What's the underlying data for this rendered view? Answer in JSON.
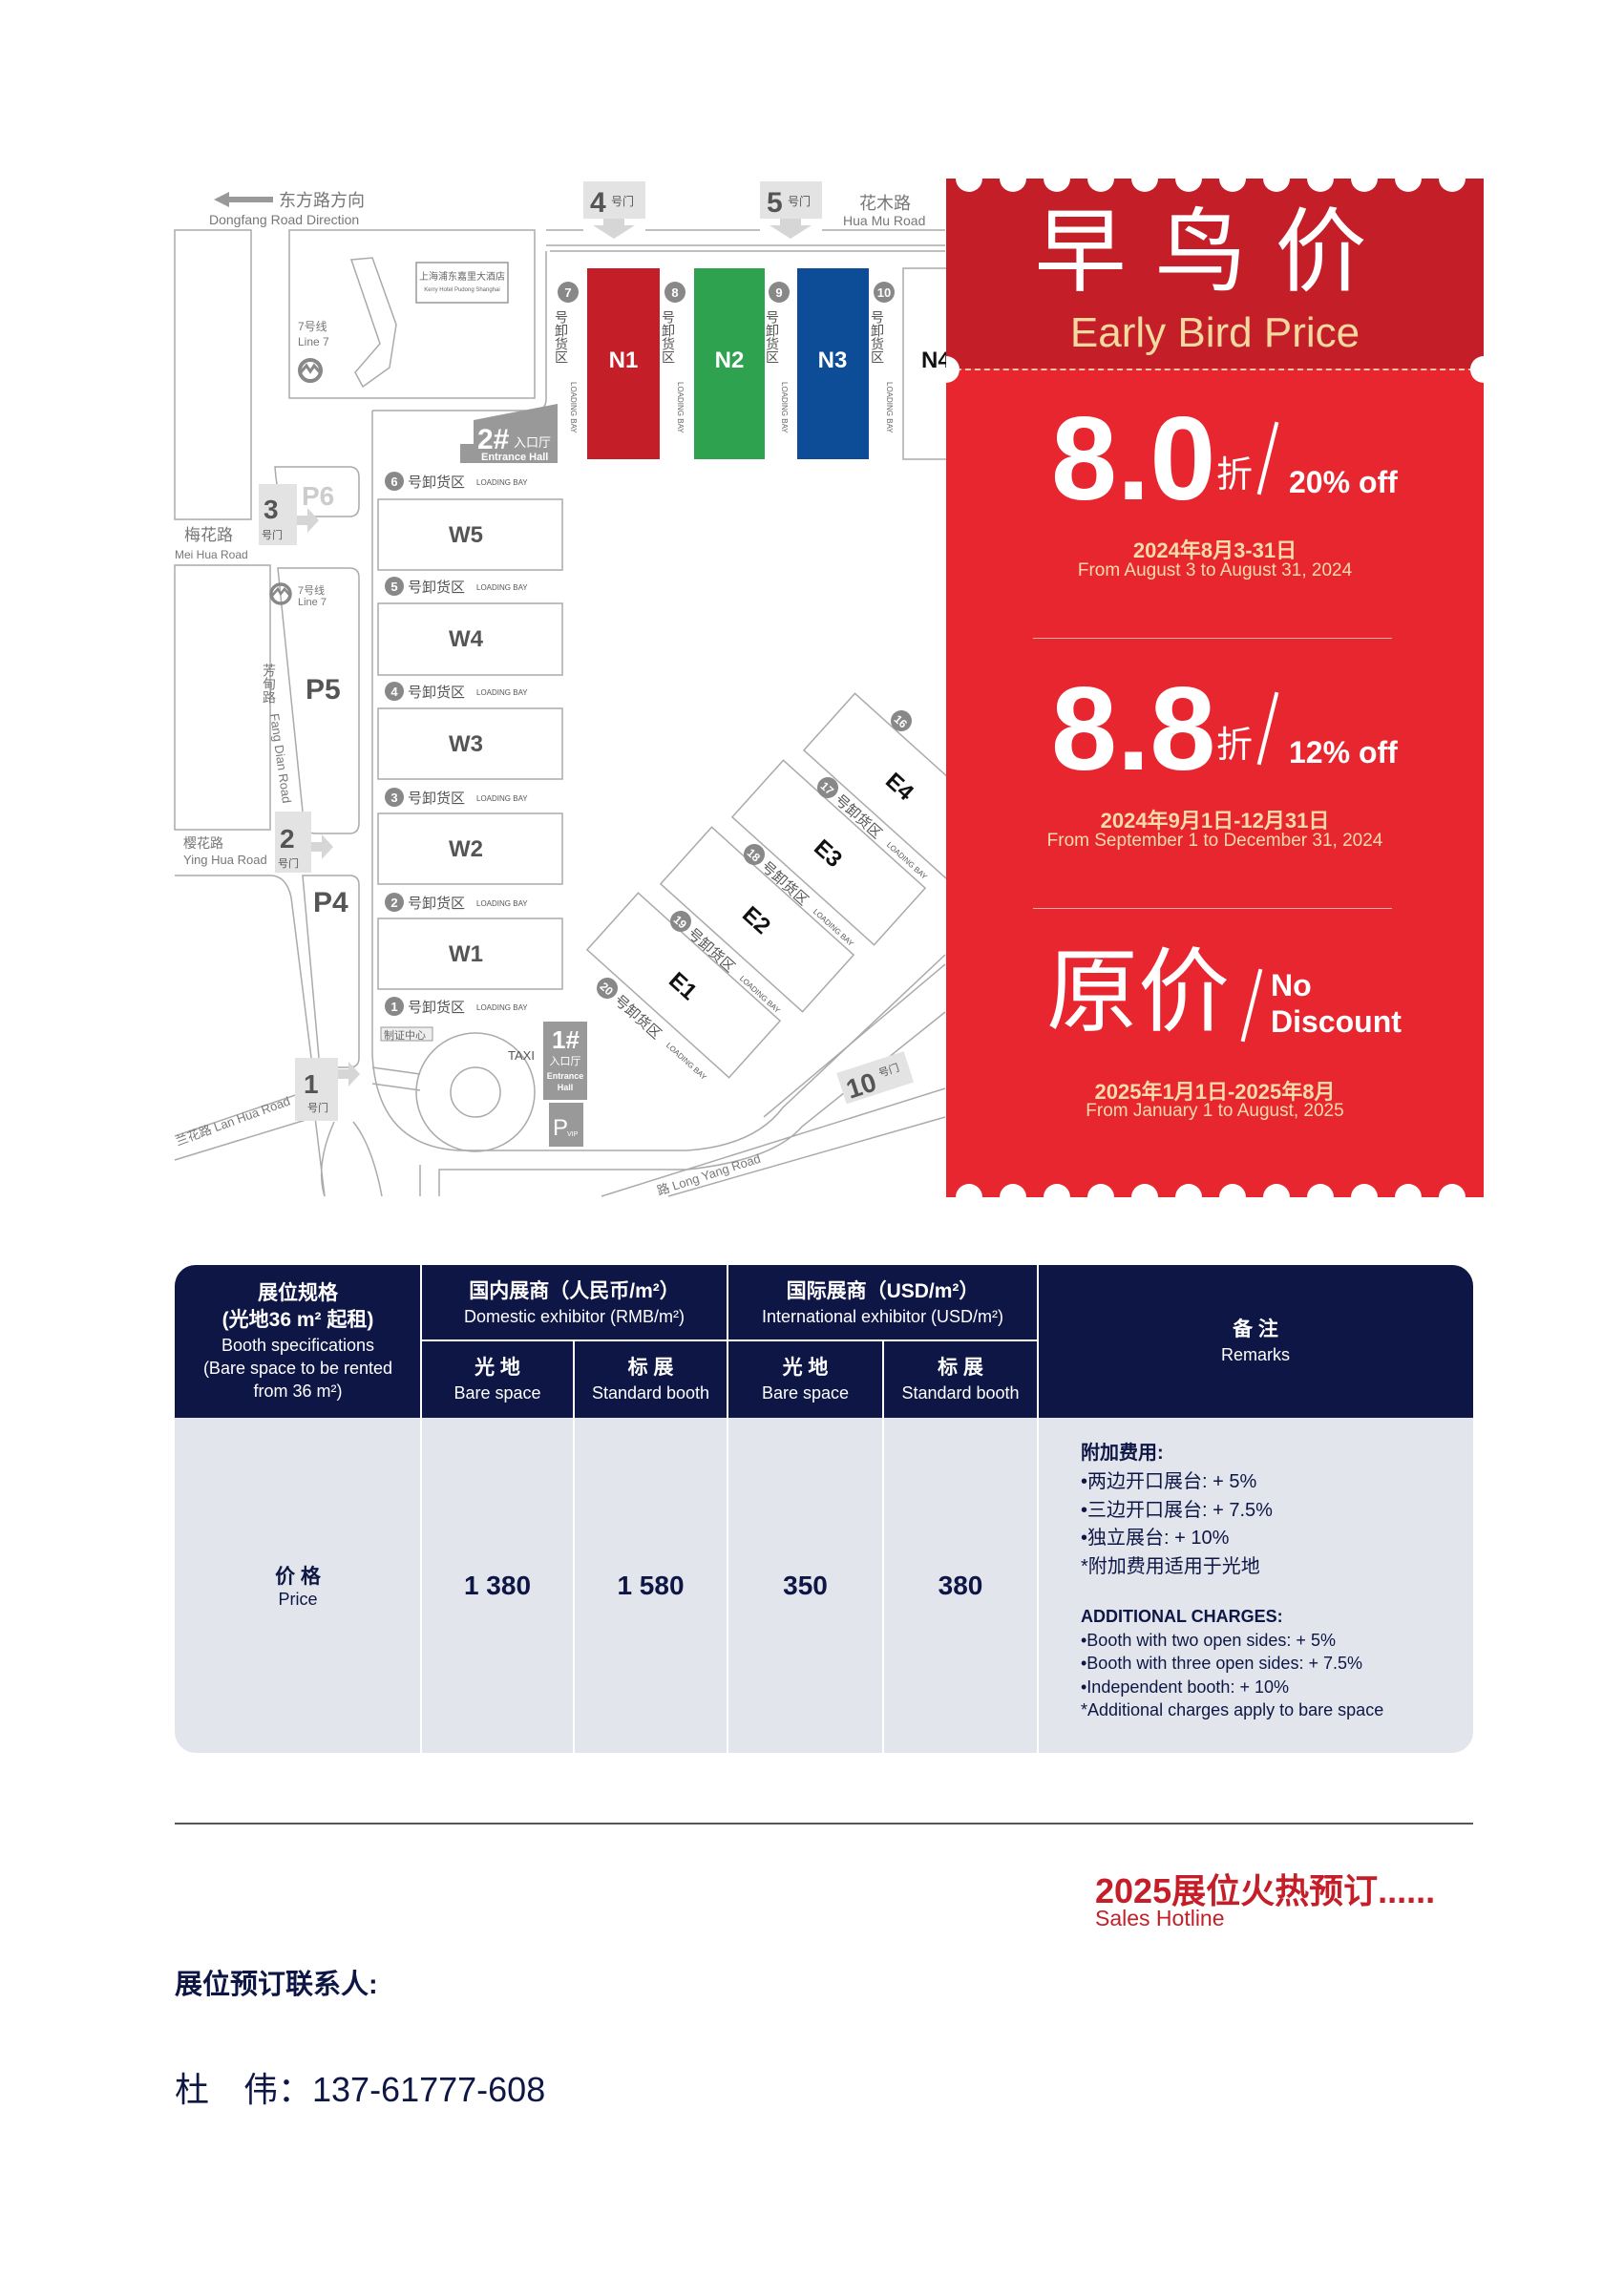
{
  "map": {
    "direction_cn": "东方路方向",
    "direction_en": "Dongfang Road Direction",
    "gates": [
      {
        "num": "4",
        "suffix": "号门"
      },
      {
        "num": "5",
        "suffix": "号门"
      },
      {
        "num": "3",
        "suffix": "号门"
      },
      {
        "num": "2",
        "suffix": "号门"
      },
      {
        "num": "1",
        "suffix": "号门"
      },
      {
        "num": "10",
        "suffix": "号门"
      }
    ],
    "roads": {
      "huamu_cn": "花木路",
      "huamu_en": "Hua Mu Road",
      "meihua_cn": "梅花路",
      "meihua_en": "Mei Hua Road",
      "yinghua_cn": "樱花路",
      "yinghua_en": "Ying Hua Road",
      "fangdian_cn": "芳甸路",
      "fangdian_en": "Fang Dian Road",
      "lanhua": "兰花路 Lan Hua Road",
      "longyang": "路 Long Yang Road"
    },
    "hotel_cn": "上海浦东嘉里大酒店",
    "hotel_en": "Kerry Hotel Pudong Shanghai",
    "metro_cn": "7号线",
    "metro_en": "Line 7",
    "entrance2": {
      "num": "2#",
      "cn": "入口厅",
      "en": "Entrance Hall"
    },
    "entrance1": {
      "num": "1#",
      "cn": "入口厅",
      "en1": "Entrance",
      "en2": "Hall"
    },
    "parking": [
      "P6",
      "P5",
      "P4"
    ],
    "vip_parking": {
      "p": "P",
      "sub": "VIP"
    },
    "badge_center": "制证中心",
    "taxi": "TAXI",
    "loading_cn": "号卸货区",
    "loading_en": "LOADING BAY",
    "loading_v_cn": "号卸货区",
    "north_halls": [
      {
        "name": "N1",
        "color": "#c41f29",
        "bay": "7"
      },
      {
        "name": "N2",
        "color": "#2fa24f",
        "bay": "8"
      },
      {
        "name": "N3",
        "color": "#0d4c96",
        "bay": "9"
      },
      {
        "name": "N4",
        "color": "#ffffff",
        "bay": "10"
      }
    ],
    "west_halls": [
      "W5",
      "W4",
      "W3",
      "W2",
      "W1"
    ],
    "west_bays": [
      "6",
      "5",
      "4",
      "3",
      "2",
      "1"
    ],
    "east_halls": [
      "E1",
      "E2",
      "E3",
      "E4"
    ],
    "east_bays": [
      "20",
      "19",
      "18",
      "17",
      "16"
    ]
  },
  "promo": {
    "title_cn": "早鸟价",
    "title_en": "Early Bird Price",
    "tiers": [
      {
        "rate": "8.0",
        "zhe": "折",
        "off": "20% off",
        "date_cn": "2024年8月3-31日",
        "date_en": "From August 3 to August 31, 2024"
      },
      {
        "rate": "8.8",
        "zhe": "折",
        "off": "12% off",
        "date_cn": "2024年9月1日-12月31日",
        "date_en": "From September 1 to December 31, 2024"
      },
      {
        "rate": "原价",
        "off_line1": "No",
        "off_line2": "Discount",
        "date_cn": "2025年1月1日-2025年8月",
        "date_en": "From January 1 to August, 2025"
      }
    ],
    "colors": {
      "dark_red": "#c41f29",
      "red": "#e8262f",
      "gold": "#f2d9a0"
    }
  },
  "table": {
    "spec_header": {
      "cn1": "展位规格",
      "cn2": "(光地36 m² 起租)",
      "en1": "Booth specifications",
      "en2": "(Bare space to be rented",
      "en3": "from 36 m²)"
    },
    "domestic": {
      "cn": "国内展商（人民币/m²）",
      "en": "Domestic exhibitor (RMB/m²)"
    },
    "international": {
      "cn": "国际展商（USD/m²）",
      "en": "International exhibitor (USD/m²)"
    },
    "remarks_header": {
      "cn": "备 注",
      "en": "Remarks"
    },
    "sub_headers": [
      {
        "cn": "光 地",
        "en": "Bare space"
      },
      {
        "cn": "标 展",
        "en": "Standard booth"
      },
      {
        "cn": "光 地",
        "en": "Bare space"
      },
      {
        "cn": "标 展",
        "en": "Standard booth"
      }
    ],
    "row": {
      "label_cn": "价 格",
      "label_en": "Price",
      "values": [
        "1 380",
        "1 580",
        "350",
        "380"
      ]
    },
    "remarks_cn": [
      "附加费用:",
      "•两边开口展台: + 5%",
      "•三边开口展台: + 7.5%",
      "•独立展台: + 10%",
      "*附加费用适用于光地"
    ],
    "remarks_en": [
      "ADDITIONAL CHARGES:",
      "•Booth with two open sides: + 5%",
      "•Booth with three open sides: + 7.5%",
      "•Independent booth: + 10%",
      "*Additional charges apply to bare space"
    ],
    "header_color": "#0e1646"
  },
  "footer": {
    "hotline_cn": "2025展位火热预订......",
    "hotline_en": "Sales Hotline",
    "contact_label": "展位预订联系人:",
    "contact_line": "杜　伟：137-61777-608"
  }
}
